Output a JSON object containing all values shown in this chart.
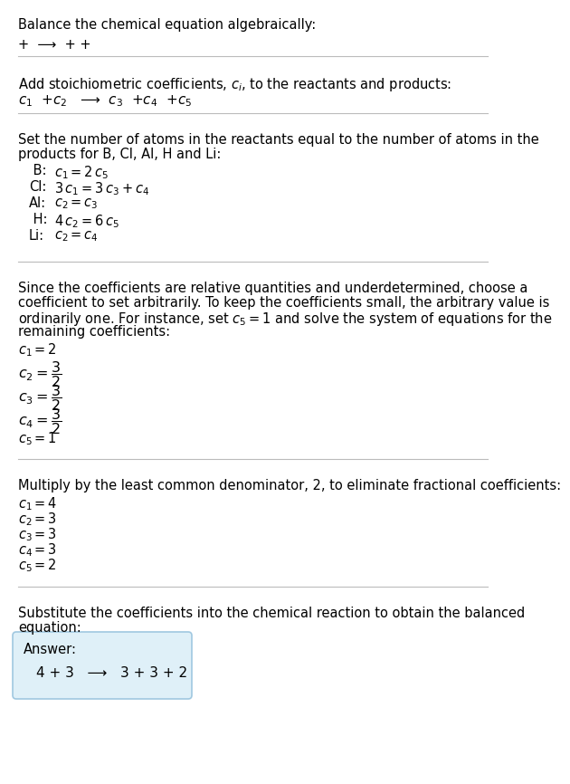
{
  "title": "Balance the chemical equation algebraically:",
  "section1_line1": "+  ⟶  + +",
  "section2_header": "Add stoichiometric coefficients, $c_i$, to the reactants and products:",
  "section2_eq": "$c_1$  +$c_2$   ⟶  $c_3$  +$c_4$  +$c_5$",
  "section3_header1": "Set the number of atoms in the reactants equal to the number of atoms in the",
  "section3_header2": "products for B, Cl, Al, H and Li:",
  "section3_equations": [
    [
      " B:",
      "$c_1 = 2\\,c_5$"
    ],
    [
      "Cl:",
      "$3\\,c_1 = 3\\,c_3 + c_4$"
    ],
    [
      "Al:",
      "$c_2 = c_3$"
    ],
    [
      " H:",
      "$4\\,c_2 = 6\\,c_5$"
    ],
    [
      "Li:",
      "$c_2 = c_4$"
    ]
  ],
  "section4_header1": "Since the coefficients are relative quantities and underdetermined, choose a",
  "section4_header2": "coefficient to set arbitrarily. To keep the coefficients small, the arbitrary value is",
  "section4_header3": "ordinarily one. For instance, set $c_5 = 1$ and solve the system of equations for the",
  "section4_header4": "remaining coefficients:",
  "section4_c1": "$c_1 = 2$",
  "section4_c5": "$c_5 = 1$",
  "section5_header": "Multiply by the least common denominator, 2, to eliminate fractional coefficients:",
  "section5_equations": [
    "$c_1 = 4$",
    "$c_2 = 3$",
    "$c_3 = 3$",
    "$c_4 = 3$",
    "$c_5 = 2$"
  ],
  "section6_header1": "Substitute the coefficients into the chemical reaction to obtain the balanced",
  "section6_header2": "equation:",
  "answer_label": "Answer:",
  "answer_equation": "4 + 3   ⟶   3 + 3 + 2",
  "answer_box_color": "#dff0f8",
  "answer_box_edge": "#a0c8e0",
  "bg_color": "#ffffff",
  "text_color": "#000000",
  "divider_color": "#bbbbbb",
  "fs": 10.5
}
